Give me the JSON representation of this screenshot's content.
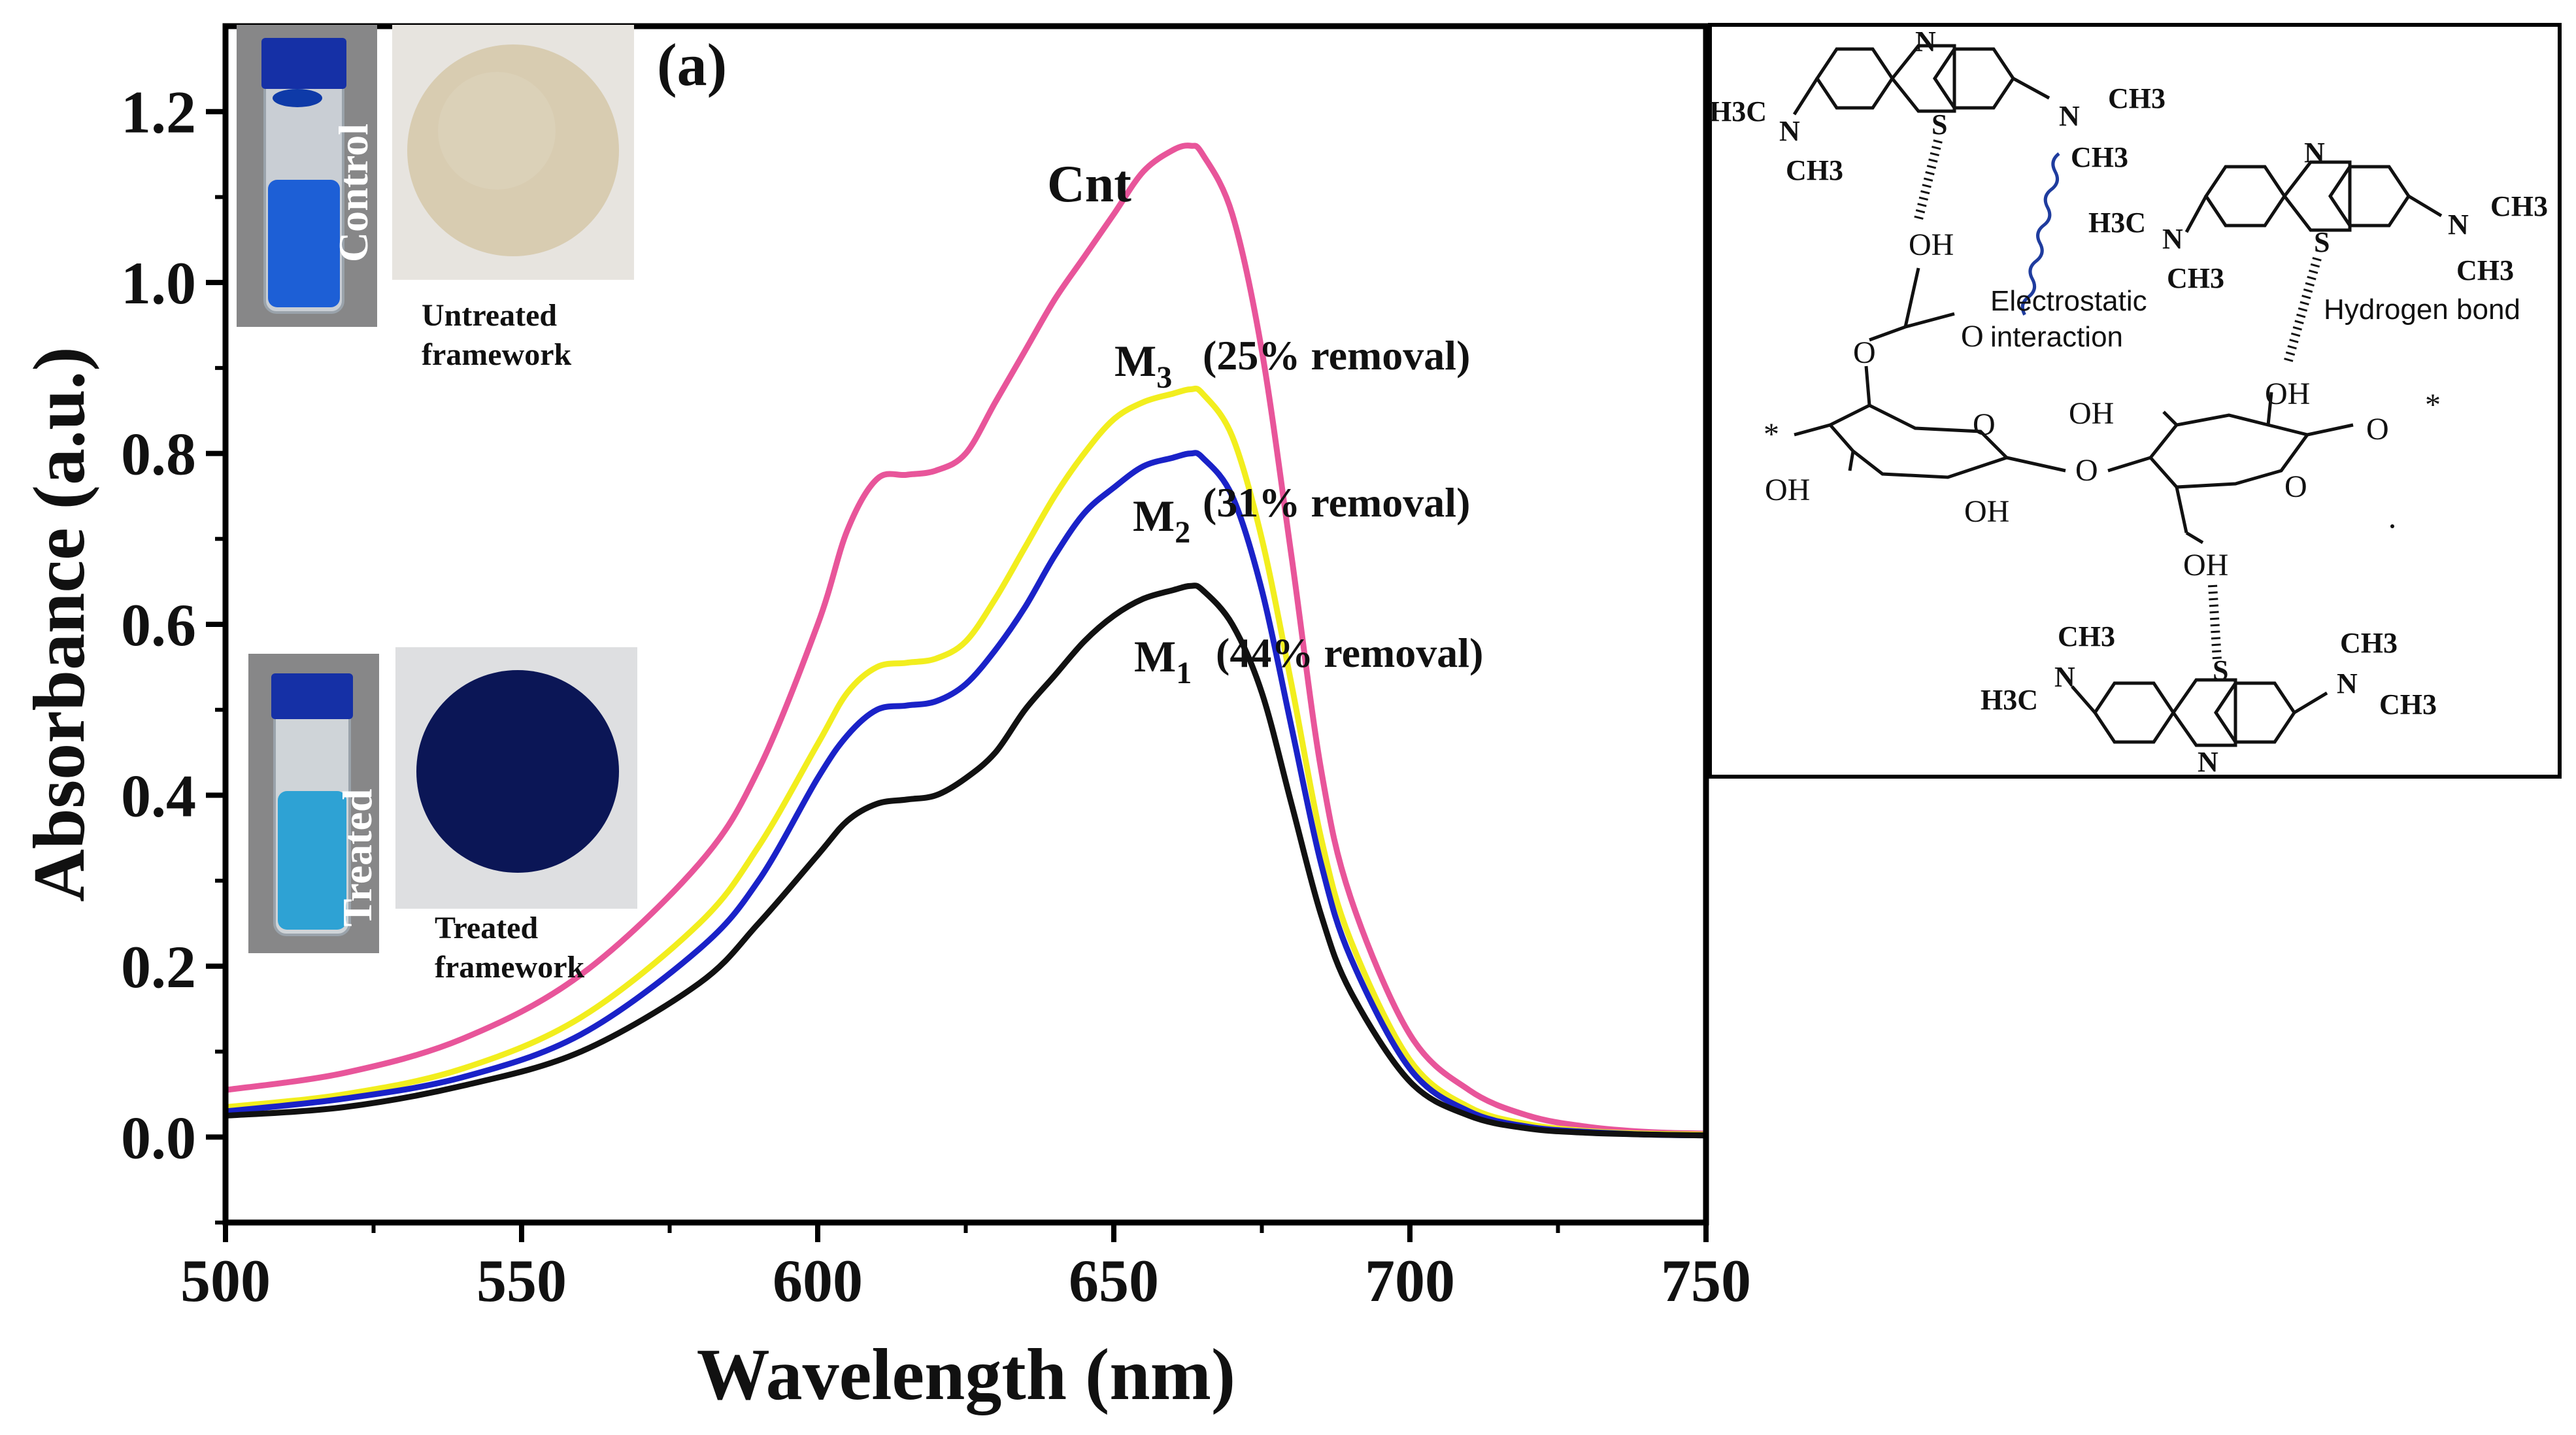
{
  "chart_data": {
    "type": "line",
    "panel_label": "(a)",
    "xlabel": "Wavelength (nm)",
    "ylabel": "Absorbance (a.u.)",
    "xlim": [
      500,
      750
    ],
    "ylim": [
      -0.1,
      1.3
    ],
    "xticks": [
      500,
      550,
      600,
      650,
      700,
      750
    ],
    "yticks": [
      0.0,
      0.2,
      0.4,
      0.6,
      0.8,
      1.0,
      1.2
    ],
    "ytick_labels": [
      "0.0",
      "0.2",
      "0.4",
      "0.6",
      "0.8",
      "1.0",
      "1.2"
    ],
    "x": [
      500,
      520,
      540,
      560,
      580,
      590,
      600,
      605,
      610,
      615,
      620,
      625,
      630,
      635,
      640,
      645,
      650,
      655,
      660,
      663,
      665,
      670,
      675,
      680,
      685,
      690,
      700,
      710,
      720,
      730,
      740,
      750
    ],
    "series": [
      {
        "name": "Cnt",
        "color": "#e8559a",
        "values": [
          0.055,
          0.075,
          0.115,
          0.19,
          0.32,
          0.43,
          0.6,
          0.71,
          0.77,
          0.775,
          0.78,
          0.8,
          0.86,
          0.92,
          0.98,
          1.03,
          1.08,
          1.13,
          1.155,
          1.16,
          1.15,
          1.08,
          0.92,
          0.68,
          0.43,
          0.28,
          0.12,
          0.055,
          0.025,
          0.012,
          0.006,
          0.004
        ]
      },
      {
        "name": "M3",
        "color": "#f2ee1e",
        "values": [
          0.035,
          0.05,
          0.08,
          0.14,
          0.25,
          0.34,
          0.46,
          0.52,
          0.55,
          0.555,
          0.56,
          0.58,
          0.63,
          0.69,
          0.75,
          0.8,
          0.84,
          0.86,
          0.87,
          0.875,
          0.87,
          0.82,
          0.7,
          0.53,
          0.35,
          0.23,
          0.09,
          0.035,
          0.015,
          0.007,
          0.004,
          0.003
        ]
      },
      {
        "name": "M2",
        "color": "#1a22c8",
        "values": [
          0.03,
          0.045,
          0.07,
          0.12,
          0.22,
          0.3,
          0.42,
          0.47,
          0.5,
          0.505,
          0.51,
          0.53,
          0.57,
          0.62,
          0.68,
          0.73,
          0.76,
          0.785,
          0.795,
          0.8,
          0.795,
          0.75,
          0.64,
          0.48,
          0.32,
          0.21,
          0.08,
          0.03,
          0.012,
          0.006,
          0.003,
          0.002
        ]
      },
      {
        "name": "M1",
        "color": "#111111",
        "values": [
          0.025,
          0.035,
          0.06,
          0.1,
          0.18,
          0.25,
          0.33,
          0.37,
          0.39,
          0.395,
          0.4,
          0.42,
          0.45,
          0.5,
          0.54,
          0.58,
          0.61,
          0.63,
          0.64,
          0.645,
          0.64,
          0.6,
          0.52,
          0.39,
          0.26,
          0.17,
          0.065,
          0.025,
          0.01,
          0.005,
          0.003,
          0.002
        ]
      }
    ],
    "annotations": [
      {
        "name": "Cnt",
        "text": "Cnt"
      },
      {
        "name": "M3",
        "main": "M",
        "sub": "3",
        "removal": "(25% removal)"
      },
      {
        "name": "M2",
        "main": "M",
        "sub": "2",
        "removal": "(31% removal)"
      },
      {
        "name": "M1",
        "main": "M",
        "sub": "1",
        "removal": "(44% removal)"
      }
    ]
  },
  "insets": {
    "control": {
      "vial_label": "Control",
      "caption_line1": "Untreated",
      "caption_line2": "framework"
    },
    "treated": {
      "vial_label": "Treated",
      "caption_line1": "Treated",
      "caption_line2": "framework"
    }
  },
  "mechanism": {
    "electrostatic_line1": "Electrostatic",
    "electrostatic_line2": "interaction",
    "hydrogen_bond": "Hydrogen bond",
    "mb_top_left": {
      "n_ring": "N",
      "s": "S",
      "n_left": "N",
      "ch3_left": "H3C",
      "ch3_down": "CH3",
      "n_right": "N",
      "ch3_right": "CH3",
      "ch3_right_down": "CH3"
    },
    "mb_top_right": {
      "n_ring": "N",
      "s": "S",
      "n_left": "N",
      "ch3_left": "H3C",
      "ch3_down": "CH3",
      "n_right": "N",
      "ch3_right": "CH3",
      "ch3_right_down": "CH3"
    },
    "mb_bottom": {
      "n_ring": "N",
      "s": "S",
      "n_left": "N",
      "ch3_left": "H3C",
      "ch3_up": "CH3",
      "n_right": "N",
      "ch3_right": "CH3",
      "ch3_right_up": "CH3"
    },
    "cellulose": {
      "oh1": "OH",
      "carboxyl_o1": "O",
      "carboxyl_o2": "O",
      "ring_o1": "O",
      "bridge_o": "O",
      "ring_o2": "O",
      "oh_left": "OH",
      "oh_bottom": "OH",
      "oh_mid": "OH",
      "oh_top_right": "OH",
      "o_end": "O",
      "star1": "*",
      "star2": "*",
      "oh_bottom_right": "OH"
    }
  }
}
